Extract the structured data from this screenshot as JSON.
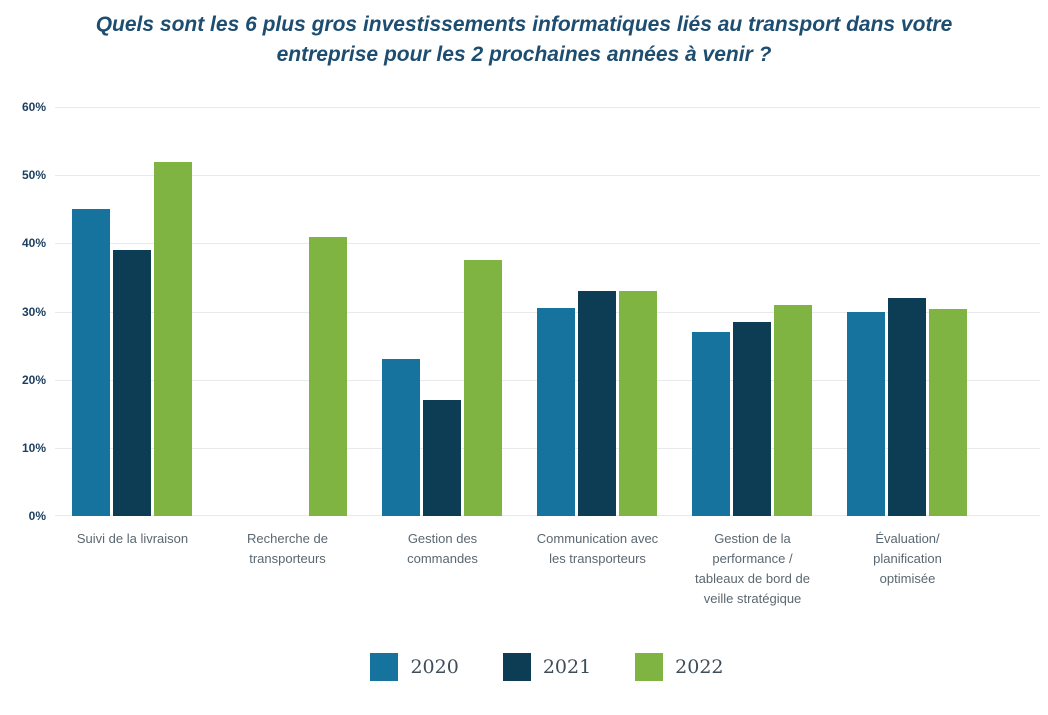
{
  "title": {
    "line1": "Quels sont les 6 plus gros investissements informatiques liés au transport dans votre",
    "line2": "entreprise pour les 2 prochaines années à venir ?"
  },
  "chart_data": {
    "type": "bar",
    "title": "Quels sont les 6 plus gros investissements informatiques liés au transport dans votre entreprise pour les 2 prochaines années à venir ?",
    "categories": [
      "Suivi de la livraison",
      "Recherche de transporteurs",
      "Gestion des commandes",
      "Communication avec les transporteurs",
      "Gestion de la performance / tableaux de bord de veille stratégique",
      "Évaluation/ planification optimisée"
    ],
    "category_label_lines": [
      [
        "Suivi de la livraison"
      ],
      [
        "Recherche de",
        "transporteurs"
      ],
      [
        "Gestion des",
        "commandes"
      ],
      [
        "Communication avec",
        "les transporteurs"
      ],
      [
        "Gestion de la",
        "performance /",
        "tableaux de bord de",
        "veille stratégique"
      ],
      [
        "Évaluation/",
        "planification",
        "optimisée"
      ]
    ],
    "series": [
      {
        "name": "2020",
        "color": "#15739e",
        "values": [
          45,
          null,
          23,
          30.5,
          27,
          30
        ]
      },
      {
        "name": "2021",
        "color": "#0d3c55",
        "values": [
          39,
          null,
          17,
          33,
          28.5,
          32
        ]
      },
      {
        "name": "2022",
        "color": "#7fb342",
        "values": [
          52,
          41,
          37.5,
          33,
          31,
          30.4
        ]
      }
    ],
    "xlabel": "",
    "ylabel": "",
    "ylim": [
      0,
      60
    ],
    "yticks": [
      "0%",
      "10%",
      "20%",
      "30%",
      "40%",
      "50%",
      "60%"
    ],
    "grid": true,
    "legend_position": "bottom"
  },
  "colors": {
    "background": "#ffffff",
    "title_text": "#1d4d70",
    "y_tick_text": "#1b3e5f",
    "category_text": "#5b6770",
    "legend_text": "#3e4d59",
    "gridline": "#e8e9eb",
    "series_2020": "#15739e",
    "series_2021": "#0d3c55",
    "series_2022": "#7fb342"
  }
}
